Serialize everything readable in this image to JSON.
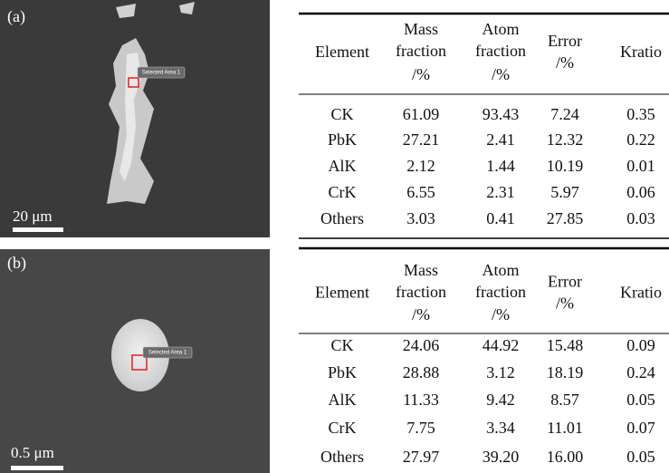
{
  "panels": [
    {
      "label": "(a)",
      "scale_bar": "20 μm",
      "selection": "Selected Area 1",
      "table": {
        "header": [
          [
            "Element"
          ],
          [
            "Mass",
            "fraction",
            "/%"
          ],
          [
            "Atom",
            "fraction",
            "/%"
          ],
          [
            "Error",
            "/%"
          ],
          [
            "Kratio"
          ]
        ],
        "rows": [
          [
            "CK",
            "61.09",
            "93.43",
            "7.24",
            "0.35"
          ],
          [
            "PbK",
            "27.21",
            "2.41",
            "12.32",
            "0.22"
          ],
          [
            "AlK",
            "2.12",
            "1.44",
            "10.19",
            "0.01"
          ],
          [
            "CrK",
            "6.55",
            "2.31",
            "5.97",
            "0.06"
          ],
          [
            "Others",
            "3.03",
            "0.41",
            "27.85",
            "0.03"
          ]
        ]
      }
    },
    {
      "label": "(b)",
      "scale_bar": "0.5 μm",
      "selection": "Selected Area 1",
      "table": {
        "header": [
          [
            "Element"
          ],
          [
            "Mass",
            "fraction",
            "/%"
          ],
          [
            "Atom",
            "fraction",
            "/%"
          ],
          [
            "Error",
            "/%"
          ],
          [
            "Kratio"
          ]
        ],
        "rows": [
          [
            "CK",
            "24.06",
            "44.92",
            "15.48",
            "0.09"
          ],
          [
            "PbK",
            "28.88",
            "3.12",
            "18.19",
            "0.24"
          ],
          [
            "AlK",
            "11.33",
            "9.42",
            "8.57",
            "0.05"
          ],
          [
            "CrK",
            "7.75",
            "3.34",
            "11.01",
            "0.07"
          ],
          [
            "Others",
            "27.97",
            "39.20",
            "16.00",
            "0.05"
          ]
        ]
      }
    }
  ]
}
